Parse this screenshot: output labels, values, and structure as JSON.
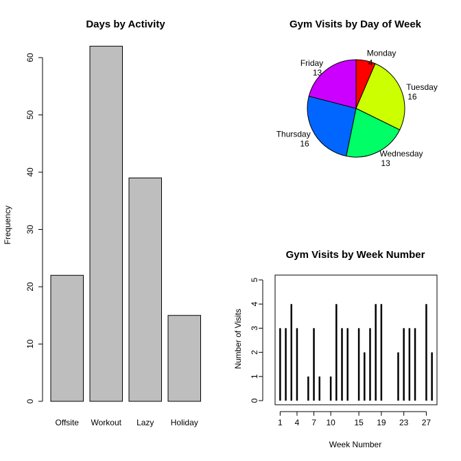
{
  "chart_data": [
    {
      "type": "bar",
      "title": "Days by Activity",
      "xlabel": "",
      "ylabel": "Frequency",
      "categories": [
        "Offsite",
        "Workout",
        "Lazy",
        "Holiday"
      ],
      "values": [
        22,
        62,
        39,
        15
      ],
      "ylim": [
        0,
        60
      ],
      "yticks": [
        0,
        10,
        20,
        30,
        40,
        50,
        60
      ],
      "bar_color": "#bebebe"
    },
    {
      "type": "pie",
      "title": "Gym Visits by Day of Week",
      "slices": [
        {
          "label": "Monday",
          "value": 4,
          "color": "#ff0000"
        },
        {
          "label": "Tuesday",
          "value": 16,
          "color": "#ccff00"
        },
        {
          "label": "Wednesday",
          "value": 13,
          "color": "#00ff66"
        },
        {
          "label": "Thursday",
          "value": 16,
          "color": "#0066ff"
        },
        {
          "label": "Friday",
          "value": 13,
          "color": "#cc00ff"
        }
      ]
    },
    {
      "type": "bar",
      "style": "histogram-lines",
      "title": "Gym Visits by Week Number",
      "xlabel": "Week Number",
      "ylabel": "Number of Visits",
      "x": [
        1,
        2,
        3,
        4,
        6,
        7,
        8,
        10,
        11,
        12,
        13,
        15,
        16,
        17,
        18,
        19,
        22,
        23,
        24,
        25,
        27,
        28
      ],
      "values": [
        3,
        3,
        4,
        3,
        1,
        3,
        1,
        1,
        4,
        3,
        3,
        3,
        2,
        3,
        4,
        4,
        2,
        3,
        3,
        3,
        4,
        2
      ],
      "xticks": [
        1,
        4,
        7,
        10,
        15,
        19,
        23,
        27
      ],
      "ylim": [
        0,
        5
      ],
      "yticks": [
        0,
        1,
        2,
        3,
        4,
        5
      ]
    }
  ]
}
